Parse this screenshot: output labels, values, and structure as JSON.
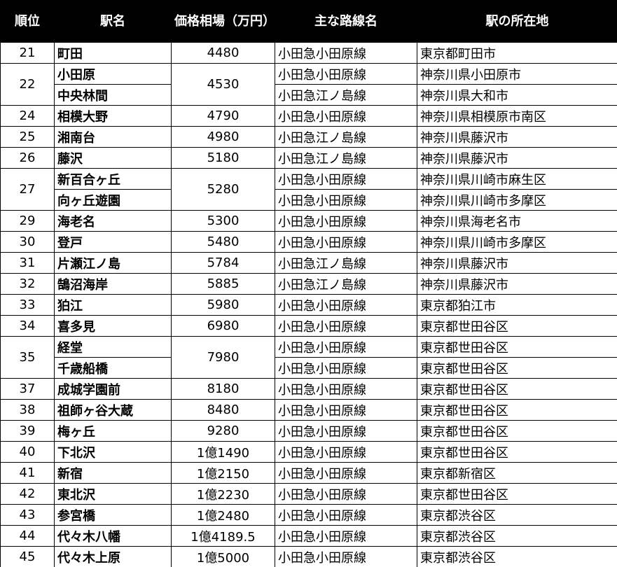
{
  "table": {
    "header": [
      "順位",
      "駅名",
      "価格相場（万円）",
      "主な路線名",
      "駅の所在地"
    ],
    "rows": [
      {
        "rank": "21",
        "price": "4480",
        "stations": [
          {
            "name": "町田",
            "line": "小田急小田原線",
            "location": "東京都町田市"
          }
        ]
      },
      {
        "rank": "22",
        "price": "4530",
        "stations": [
          {
            "name": "小田原",
            "line": "小田急小田原線",
            "location": "神奈川県小田原市"
          },
          {
            "name": "中央林間",
            "line": "小田急江ノ島線",
            "location": "神奈川県大和市"
          }
        ]
      },
      {
        "rank": "24",
        "price": "4790",
        "stations": [
          {
            "name": "相模大野",
            "line": "小田急小田原線",
            "location": "神奈川県相模原市南区"
          }
        ]
      },
      {
        "rank": "25",
        "price": "4980",
        "stations": [
          {
            "name": "湘南台",
            "line": "小田急江ノ島線",
            "location": "神奈川県藤沢市"
          }
        ]
      },
      {
        "rank": "26",
        "price": "5180",
        "stations": [
          {
            "name": "藤沢",
            "line": "小田急江ノ島線",
            "location": "神奈川県藤沢市"
          }
        ]
      },
      {
        "rank": "27",
        "price": "5280",
        "stations": [
          {
            "name": "新百合ヶ丘",
            "line": "小田急小田原線",
            "location": "神奈川県川崎市麻生区"
          },
          {
            "name": "向ヶ丘遊園",
            "line": "小田急小田原線",
            "location": "神奈川県川崎市多摩区"
          }
        ]
      },
      {
        "rank": "29",
        "price": "5300",
        "stations": [
          {
            "name": "海老名",
            "line": "小田急小田原線",
            "location": "神奈川県海老名市"
          }
        ]
      },
      {
        "rank": "30",
        "price": "5480",
        "stations": [
          {
            "name": "登戸",
            "line": "小田急小田原線",
            "location": "神奈川県川崎市多摩区"
          }
        ]
      },
      {
        "rank": "31",
        "price": "5784",
        "stations": [
          {
            "name": "片瀬江ノ島",
            "line": "小田急江ノ島線",
            "location": "神奈川県藤沢市"
          }
        ]
      },
      {
        "rank": "32",
        "price": "5885",
        "stations": [
          {
            "name": "鵠沼海岸",
            "line": "小田急江ノ島線",
            "location": "神奈川県藤沢市"
          }
        ]
      },
      {
        "rank": "33",
        "price": "5980",
        "stations": [
          {
            "name": "狛江",
            "line": "小田急小田原線",
            "location": "東京都狛江市"
          }
        ]
      },
      {
        "rank": "34",
        "price": "6980",
        "stations": [
          {
            "name": "喜多見",
            "line": "小田急小田原線",
            "location": "東京都世田谷区"
          }
        ]
      },
      {
        "rank": "35",
        "price": "7980",
        "stations": [
          {
            "name": "経堂",
            "line": "小田急小田原線",
            "location": "東京都世田谷区"
          },
          {
            "name": "千歳船橋",
            "line": "小田急小田原線",
            "location": "東京都世田谷区"
          }
        ]
      },
      {
        "rank": "37",
        "price": "8180",
        "stations": [
          {
            "name": "成城学園前",
            "line": "小田急小田原線",
            "location": "東京都世田谷区"
          }
        ]
      },
      {
        "rank": "38",
        "price": "8480",
        "stations": [
          {
            "name": "祖師ヶ谷大蔵",
            "line": "小田急小田原線",
            "location": "東京都世田谷区"
          }
        ]
      },
      {
        "rank": "39",
        "price": "9280",
        "stations": [
          {
            "name": "梅ヶ丘",
            "line": "小田急小田原線",
            "location": "東京都世田谷区"
          }
        ]
      },
      {
        "rank": "40",
        "price": "1億1490",
        "stations": [
          {
            "name": "下北沢",
            "line": "小田急小田原線",
            "location": "東京都世田谷区"
          }
        ]
      },
      {
        "rank": "41",
        "price": "1億2150",
        "stations": [
          {
            "name": "新宿",
            "line": "小田急小田原線",
            "location": "東京都新宿区"
          }
        ]
      },
      {
        "rank": "42",
        "price": "1億2230",
        "stations": [
          {
            "name": "東北沢",
            "line": "小田急小田原線",
            "location": "東京都世田谷区"
          }
        ]
      },
      {
        "rank": "43",
        "price": "1億2480",
        "stations": [
          {
            "name": "参宮橋",
            "line": "小田急小田原線",
            "location": "東京都渋谷区"
          }
        ]
      },
      {
        "rank": "44",
        "price": "1億4189.5",
        "stations": [
          {
            "name": "代々木八幡",
            "line": "小田急小田原線",
            "location": "東京都渋谷区"
          }
        ]
      },
      {
        "rank": "45",
        "price": "1億5000",
        "stations": [
          {
            "name": "代々木上原",
            "line": "小田急小田原線",
            "location": "東京都渋谷区"
          }
        ]
      }
    ]
  }
}
